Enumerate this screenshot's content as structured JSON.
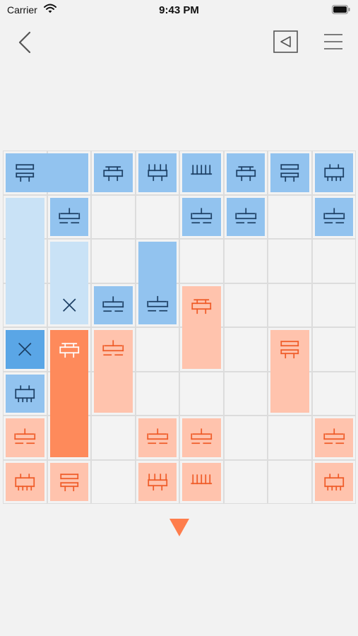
{
  "status_bar": {
    "carrier": "Carrier",
    "time": "9:43 PM",
    "icons": [
      "wifi-icon",
      "battery-icon"
    ]
  },
  "navigation": {
    "back_icon": "chevron-left-icon",
    "play_icon": "play-triangle-icon",
    "menu_icon": "hamburger-menu-icon"
  },
  "board": {
    "columns": 8,
    "rows": 8,
    "colors": {
      "grid_bg": "#f3f3f3",
      "grid_line": "#dcdcdc",
      "blue_mid": "#92c3ef",
      "blue_light": "#c9e2f6",
      "blue_dark": "#5aa6e6",
      "blue_icon": "#1c3f64",
      "orange_light": "#ffc3ad",
      "orange_dark": "#fe8a5b",
      "orange_icon": "#ef5a26",
      "orange_icon_light": "#ffffff"
    },
    "pieces": [
      {
        "team": "blue",
        "shade": "mid",
        "col": 0,
        "row": 0,
        "w": 2,
        "h": 1,
        "icon": "brick",
        "anchor": "start"
      },
      {
        "team": "blue",
        "shade": "mid",
        "col": 2,
        "row": 0,
        "w": 1,
        "h": 1,
        "icon": "block"
      },
      {
        "team": "blue",
        "shade": "mid",
        "col": 3,
        "row": 0,
        "w": 1,
        "h": 1,
        "icon": "comb"
      },
      {
        "team": "blue",
        "shade": "mid",
        "col": 4,
        "row": 0,
        "w": 1,
        "h": 1,
        "icon": "rake"
      },
      {
        "team": "blue",
        "shade": "mid",
        "col": 5,
        "row": 0,
        "w": 1,
        "h": 1,
        "icon": "block"
      },
      {
        "team": "blue",
        "shade": "mid",
        "col": 6,
        "row": 0,
        "w": 1,
        "h": 1,
        "icon": "brick"
      },
      {
        "team": "blue",
        "shade": "mid",
        "col": 7,
        "row": 0,
        "w": 1,
        "h": 1,
        "icon": "box"
      },
      {
        "team": "blue",
        "shade": "light",
        "col": 0,
        "row": 1,
        "w": 1,
        "h": 3,
        "icon": "none"
      },
      {
        "team": "blue",
        "shade": "mid",
        "col": 1,
        "row": 1,
        "w": 1,
        "h": 1,
        "icon": "stand"
      },
      {
        "team": "blue",
        "shade": "mid",
        "col": 4,
        "row": 1,
        "w": 1,
        "h": 1,
        "icon": "stand"
      },
      {
        "team": "blue",
        "shade": "mid",
        "col": 5,
        "row": 1,
        "w": 1,
        "h": 1,
        "icon": "stand"
      },
      {
        "team": "blue",
        "shade": "mid",
        "col": 7,
        "row": 1,
        "w": 1,
        "h": 1,
        "icon": "stand"
      },
      {
        "team": "blue",
        "shade": "light",
        "col": 1,
        "row": 2,
        "w": 1,
        "h": 2,
        "icon": "cross",
        "anchor": "end"
      },
      {
        "team": "blue",
        "shade": "mid",
        "col": 3,
        "row": 2,
        "w": 1,
        "h": 2,
        "icon": "stand",
        "anchor": "end"
      },
      {
        "team": "blue",
        "shade": "mid",
        "col": 2,
        "row": 3,
        "w": 1,
        "h": 1,
        "icon": "stand"
      },
      {
        "team": "blue",
        "shade": "dark",
        "col": 0,
        "row": 4,
        "w": 1,
        "h": 1,
        "icon": "cross"
      },
      {
        "team": "blue",
        "shade": "mid",
        "col": 0,
        "row": 5,
        "w": 1,
        "h": 1,
        "icon": "box"
      },
      {
        "team": "orange",
        "shade": "light",
        "col": 4,
        "row": 3,
        "w": 1,
        "h": 2,
        "icon": "block",
        "anchor": "start"
      },
      {
        "team": "orange",
        "shade": "dark",
        "col": 1,
        "row": 4,
        "w": 1,
        "h": 3,
        "icon": "block",
        "anchor": "start"
      },
      {
        "team": "orange",
        "shade": "light",
        "col": 2,
        "row": 4,
        "w": 1,
        "h": 2,
        "icon": "stand",
        "anchor": "start"
      },
      {
        "team": "orange",
        "shade": "light",
        "col": 6,
        "row": 4,
        "w": 1,
        "h": 2,
        "icon": "brick",
        "anchor": "start"
      },
      {
        "team": "orange",
        "shade": "light",
        "col": 0,
        "row": 6,
        "w": 1,
        "h": 1,
        "icon": "stand"
      },
      {
        "team": "orange",
        "shade": "light",
        "col": 3,
        "row": 6,
        "w": 1,
        "h": 1,
        "icon": "stand"
      },
      {
        "team": "orange",
        "shade": "light",
        "col": 4,
        "row": 6,
        "w": 1,
        "h": 1,
        "icon": "stand"
      },
      {
        "team": "orange",
        "shade": "light",
        "col": 7,
        "row": 6,
        "w": 1,
        "h": 1,
        "icon": "stand"
      },
      {
        "team": "orange",
        "shade": "light",
        "col": 0,
        "row": 7,
        "w": 1,
        "h": 1,
        "icon": "box"
      },
      {
        "team": "orange",
        "shade": "light",
        "col": 1,
        "row": 7,
        "w": 1,
        "h": 1,
        "icon": "brick"
      },
      {
        "team": "orange",
        "shade": "light",
        "col": 3,
        "row": 7,
        "w": 1,
        "h": 1,
        "icon": "comb"
      },
      {
        "team": "orange",
        "shade": "light",
        "col": 4,
        "row": 7,
        "w": 1,
        "h": 1,
        "icon": "rake"
      },
      {
        "team": "orange",
        "shade": "light",
        "col": 7,
        "row": 7,
        "w": 1,
        "h": 1,
        "icon": "box"
      }
    ]
  },
  "drop_indicator": {
    "icon": "down-triangle-icon",
    "color": "#fe7d4c"
  }
}
